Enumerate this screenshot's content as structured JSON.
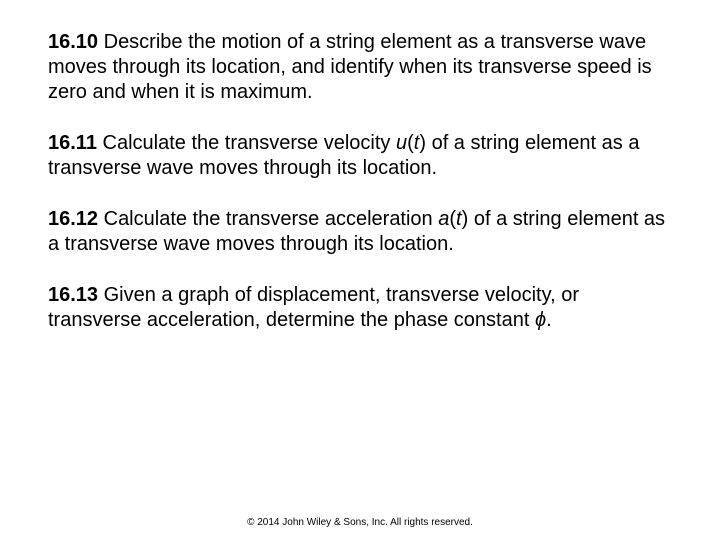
{
  "items": [
    {
      "num": "16.10",
      "pre": " Describe the motion of a string element as a transverse wave moves through its location, and identify when its transverse speed is zero and when it is maximum.",
      "var": "",
      "post": ""
    },
    {
      "num": "16.11",
      "pre": " Calculate the transverse velocity ",
      "var": "u",
      "arg": "(",
      "argvar": "t",
      "argclose": ")",
      "post": " of a string element as a transverse wave moves through its location."
    },
    {
      "num": "16.12",
      "pre": " Calculate the transverse acceleration ",
      "var": "a",
      "arg": "(",
      "argvar": "t",
      "argclose": ")",
      "post": " of a string element as a transverse wave moves through its location."
    },
    {
      "num": "16.13",
      "pre": " Given a graph of displacement, transverse velocity, or transverse acceleration, determine the phase constant ",
      "var": "ϕ",
      "arg": "",
      "argvar": "",
      "argclose": "",
      "post": "."
    }
  ],
  "footer": "© 2014 John Wiley & Sons, Inc. All rights reserved."
}
